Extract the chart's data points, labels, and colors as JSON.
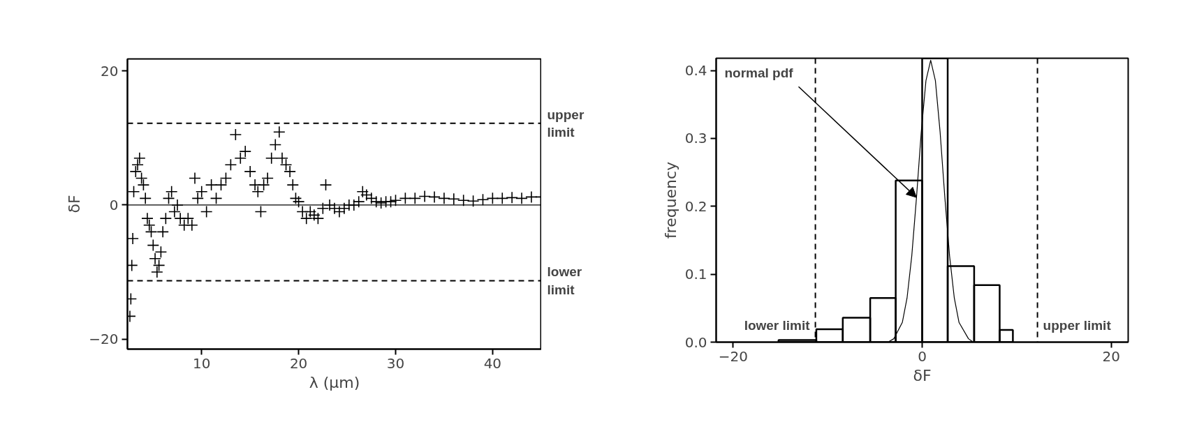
{
  "chart_data": [
    {
      "type": "scatter",
      "xlabel": "λ (μm)",
      "ylabel": "δF",
      "marker": "cross",
      "color": "#000000",
      "grid": false,
      "xlim": [
        2.35,
        45.05
      ],
      "ylim": [
        -21.5,
        21.8
      ],
      "xticks": [
        10,
        20,
        30,
        40
      ],
      "yticks": [
        -20,
        0,
        20
      ],
      "x": [
        2.6,
        2.7,
        2.8,
        2.9,
        3.0,
        3.2,
        3.4,
        3.6,
        3.8,
        4.0,
        4.2,
        4.4,
        4.6,
        4.8,
        5.0,
        5.2,
        5.4,
        5.6,
        5.8,
        6.0,
        6.3,
        6.6,
        6.9,
        7.2,
        7.5,
        7.8,
        8.2,
        8.6,
        9.0,
        9.3,
        9.6,
        10,
        10.5,
        11,
        11.5,
        12,
        12.5,
        13,
        13.5,
        14,
        14.5,
        15,
        15.5,
        15.8,
        16.1,
        16.4,
        16.8,
        17.2,
        17.6,
        18,
        18.3,
        18.7,
        19.1,
        19.4,
        19.7,
        20,
        20.4,
        20.8,
        21.2,
        21.6,
        22,
        22.5,
        22.8,
        23.2,
        23.7,
        24.2,
        24.7,
        25.2,
        25.7,
        26.2,
        26.6,
        27,
        27.5,
        28,
        28.5,
        29,
        29.5,
        30,
        31,
        32,
        33,
        34,
        35,
        36,
        37,
        38,
        39,
        40,
        41,
        42,
        43,
        44,
        45
      ],
      "values": [
        -16.6,
        -14,
        -9,
        -5,
        2,
        5,
        6,
        7,
        4,
        3,
        1,
        -2,
        -3,
        -4,
        -6,
        -8,
        -10,
        -9,
        -7,
        -4,
        -2,
        1,
        2,
        -1,
        0,
        -2,
        -3,
        -2,
        -3,
        4,
        1,
        2,
        -1,
        3,
        1,
        3,
        4,
        6,
        10.5,
        7,
        8,
        5,
        3,
        2,
        -1,
        3,
        4,
        7,
        9,
        10.9,
        7,
        6,
        5,
        3,
        1,
        0.5,
        -1,
        -2,
        -1,
        -1.5,
        -2,
        -0.5,
        3,
        0,
        -0.5,
        -1,
        -0.5,
        0,
        0,
        0.5,
        2,
        1.5,
        1,
        0.5,
        0.3,
        0.5,
        0.5,
        0.7,
        1,
        1,
        1.3,
        1.2,
        1.0,
        0.9,
        0.7,
        0.6,
        0.8,
        1,
        1,
        1.1,
        1,
        1.2,
        1.2
      ],
      "ref_lines": [
        {
          "axis": "y",
          "value": 0,
          "line_style": "solid"
        },
        {
          "axis": "y",
          "value": 12.2,
          "label": "upper limit",
          "line_style": "dashed"
        },
        {
          "axis": "y",
          "value": -11.3,
          "label": "lower limit",
          "line_style": "dashed"
        }
      ]
    },
    {
      "type": "histogram",
      "xlabel": "δF",
      "ylabel": "frequency",
      "color": "#000000",
      "grid": false,
      "xlim": [
        -21.8,
        21.8
      ],
      "ylim": [
        0,
        0.418
      ],
      "xticks": [
        -20,
        0,
        20
      ],
      "yticks": [
        {
          "value": 0,
          "label": "0.0"
        },
        {
          "value": 0.1,
          "label": "0.1"
        },
        {
          "value": 0.2,
          "label": "0.2"
        },
        {
          "value": 0.3,
          "label": "0.3"
        },
        {
          "value": 0.4,
          "label": "0.4"
        }
      ],
      "bins": [
        -15.2,
        -11.2,
        -8.4,
        -5.5,
        -2.8,
        0,
        2.7,
        5.5,
        8.2,
        9.6
      ],
      "values": [
        0.003,
        0.019,
        0.036,
        0.065,
        0.238,
        0.418,
        0.112,
        0.084,
        0.018
      ],
      "series": [
        {
          "type": "line",
          "color": "#000000",
          "x": [
            -3.5,
            -3.0,
            -2.1,
            -1.6,
            -1.1,
            -0.6,
            -0.1,
            0.4,
            0.9,
            1.4,
            1.9,
            2.4,
            2.9,
            3.4,
            3.9,
            4.9,
            5.3
          ],
          "values": [
            0.001,
            0.005,
            0.029,
            0.065,
            0.127,
            0.213,
            0.309,
            0.385,
            0.415,
            0.385,
            0.309,
            0.213,
            0.127,
            0.065,
            0.029,
            0.005,
            0.001
          ]
        }
      ],
      "annotations": [
        {
          "text": "normal pdf",
          "x": -0.6,
          "y": 0.213
        }
      ],
      "ref_lines": [
        {
          "axis": "x",
          "value": -11.3,
          "label": "lower limit",
          "line_style": "dashed"
        },
        {
          "axis": "x",
          "value": 12.2,
          "label": "upper limit",
          "line_style": "dashed"
        }
      ]
    }
  ]
}
